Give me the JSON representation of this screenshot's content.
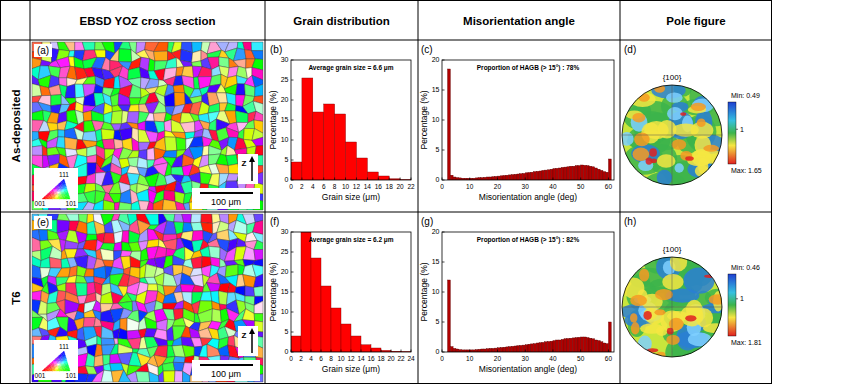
{
  "header": {
    "columns": [
      "EBSD YOZ cross section",
      "Grain distribution",
      "Misorientation angle",
      "Pole figure"
    ],
    "rows": [
      "As-deposited",
      "T6"
    ]
  },
  "ebsd": [
    {
      "panel": "(a)",
      "ipf_labels": [
        "111",
        "001",
        "101"
      ],
      "axis": "Z",
      "scale_bar": "100 μm"
    },
    {
      "panel": "(e)",
      "ipf_labels": [
        "111",
        "001",
        "101"
      ],
      "axis": "Z",
      "scale_bar": "100 μm"
    }
  ],
  "pole_figures": [
    {
      "panel": "(d)",
      "title": "{100}",
      "colorbar": {
        "min": {
          "value": 0.49,
          "label": "Min: 0.49"
        },
        "max": {
          "value": 1.65,
          "label": "Max: 1.65"
        },
        "ticks": [
          1
        ]
      }
    },
    {
      "panel": "(h)",
      "title": "{100}",
      "colorbar": {
        "min": {
          "value": 0.46,
          "label": "Min: 0.46"
        },
        "max": {
          "value": 1.81,
          "label": "Max: 1.81"
        },
        "ticks": [
          1
        ]
      }
    }
  ],
  "chart_data": [
    {
      "type": "histogram",
      "panel": "(b)",
      "annotation": "Average grain size = 6.6 μm",
      "xlabel": "Grain size (μm)",
      "ylabel": "Percentage (%)",
      "color": "#ff0000",
      "grid": false,
      "bins": [
        0,
        2,
        4,
        6,
        8,
        10,
        12,
        14,
        16,
        18,
        20,
        22
      ],
      "values": [
        4.5,
        25.5,
        17,
        19,
        16.5,
        9.5,
        5.5,
        2,
        1,
        0.3,
        0.1
      ],
      "xlim": [
        0,
        22
      ],
      "ylim": [
        0,
        30
      ],
      "xticks": [
        0,
        2,
        4,
        6,
        8,
        10,
        12,
        14,
        16,
        18,
        20,
        22
      ],
      "yticks": [
        0,
        5,
        10,
        15,
        20,
        25,
        30
      ]
    },
    {
      "type": "histogram",
      "panel": "(c)",
      "annotation": "Proportion of HAGB (> 15°) : 78%",
      "xlabel": "Misorientation angle (deg)",
      "ylabel": "Percentage (%)",
      "color": "#b00000",
      "grid": false,
      "bins": [
        2,
        3,
        4,
        5,
        6,
        7,
        8,
        9,
        10,
        11,
        12,
        13,
        14,
        15,
        16,
        17,
        18,
        19,
        20,
        21,
        22,
        23,
        24,
        25,
        26,
        27,
        28,
        29,
        30,
        31,
        32,
        33,
        34,
        35,
        36,
        37,
        38,
        39,
        40,
        41,
        42,
        43,
        44,
        45,
        46,
        47,
        48,
        49,
        50,
        51,
        52,
        53,
        54,
        55,
        56,
        57,
        58,
        59,
        60,
        61
      ],
      "values": [
        18.5,
        0.8,
        0.5,
        0.4,
        0.35,
        0.3,
        0.3,
        0.3,
        0.3,
        0.3,
        0.35,
        0.4,
        0.4,
        0.45,
        0.5,
        0.5,
        0.55,
        0.6,
        0.65,
        0.7,
        0.75,
        0.8,
        0.85,
        0.9,
        0.95,
        1.0,
        1.05,
        1.1,
        1.2,
        1.25,
        1.3,
        1.4,
        1.45,
        1.5,
        1.6,
        1.65,
        1.7,
        1.8,
        1.9,
        1.95,
        2.0,
        2.1,
        2.15,
        2.2,
        2.3,
        2.3,
        2.4,
        2.4,
        2.5,
        2.45,
        2.4,
        2.3,
        2.2,
        2.0,
        1.8,
        1.6,
        1.4,
        1.3,
        3.5
      ],
      "xlim": [
        0,
        62
      ],
      "ylim": [
        0,
        20
      ],
      "xticks": [
        0,
        10,
        20,
        30,
        40,
        50,
        60
      ],
      "yticks": [
        0,
        5,
        10,
        15,
        20
      ]
    },
    {
      "type": "histogram",
      "panel": "(f)",
      "annotation": "Average grain size = 6.2 μm",
      "xlabel": "Grain size (μm)",
      "ylabel": "Percentage (%)",
      "color": "#ff0000",
      "grid": false,
      "bins": [
        0,
        2,
        4,
        6,
        8,
        10,
        12,
        14,
        16,
        18,
        20,
        22,
        24
      ],
      "values": [
        4,
        30,
        23.5,
        16.5,
        11,
        7,
        4,
        1.8,
        1,
        0.4,
        0.2,
        0.1
      ],
      "xlim": [
        0,
        24
      ],
      "ylim": [
        0,
        30
      ],
      "xticks": [
        0,
        2,
        4,
        6,
        8,
        10,
        12,
        14,
        16,
        18,
        20,
        22,
        24
      ],
      "yticks": [
        0,
        5,
        10,
        15,
        20,
        25,
        30
      ]
    },
    {
      "type": "histogram",
      "panel": "(g)",
      "annotation": "Proportion of HAGB (> 15°) : 82%",
      "xlabel": "Misorientation angle (deg)",
      "ylabel": "Percentage (%)",
      "color": "#b00000",
      "grid": false,
      "bins": [
        2,
        3,
        4,
        5,
        6,
        7,
        8,
        9,
        10,
        11,
        12,
        13,
        14,
        15,
        16,
        17,
        18,
        19,
        20,
        21,
        22,
        23,
        24,
        25,
        26,
        27,
        28,
        29,
        30,
        31,
        32,
        33,
        34,
        35,
        36,
        37,
        38,
        39,
        40,
        41,
        42,
        43,
        44,
        45,
        46,
        47,
        48,
        49,
        50,
        51,
        52,
        53,
        54,
        55,
        56,
        57,
        58,
        59,
        60,
        61
      ],
      "values": [
        12,
        0.9,
        0.6,
        0.5,
        0.4,
        0.35,
        0.35,
        0.35,
        0.35,
        0.35,
        0.4,
        0.45,
        0.5,
        0.5,
        0.55,
        0.6,
        0.6,
        0.65,
        0.7,
        0.75,
        0.8,
        0.85,
        0.9,
        0.95,
        1.0,
        1.05,
        1.1,
        1.15,
        1.2,
        1.3,
        1.35,
        1.4,
        1.5,
        1.55,
        1.6,
        1.7,
        1.75,
        1.8,
        1.9,
        2.0,
        2.0,
        2.1,
        2.2,
        2.25,
        2.3,
        2.35,
        2.4,
        2.45,
        2.5,
        2.5,
        2.4,
        2.3,
        2.2,
        2.0,
        1.9,
        1.7,
        1.5,
        1.4,
        5.0
      ],
      "xlim": [
        0,
        62
      ],
      "ylim": [
        0,
        20
      ],
      "xticks": [
        0,
        10,
        20,
        30,
        40,
        50,
        60
      ],
      "yticks": [
        0,
        5,
        10,
        15,
        20
      ]
    }
  ]
}
